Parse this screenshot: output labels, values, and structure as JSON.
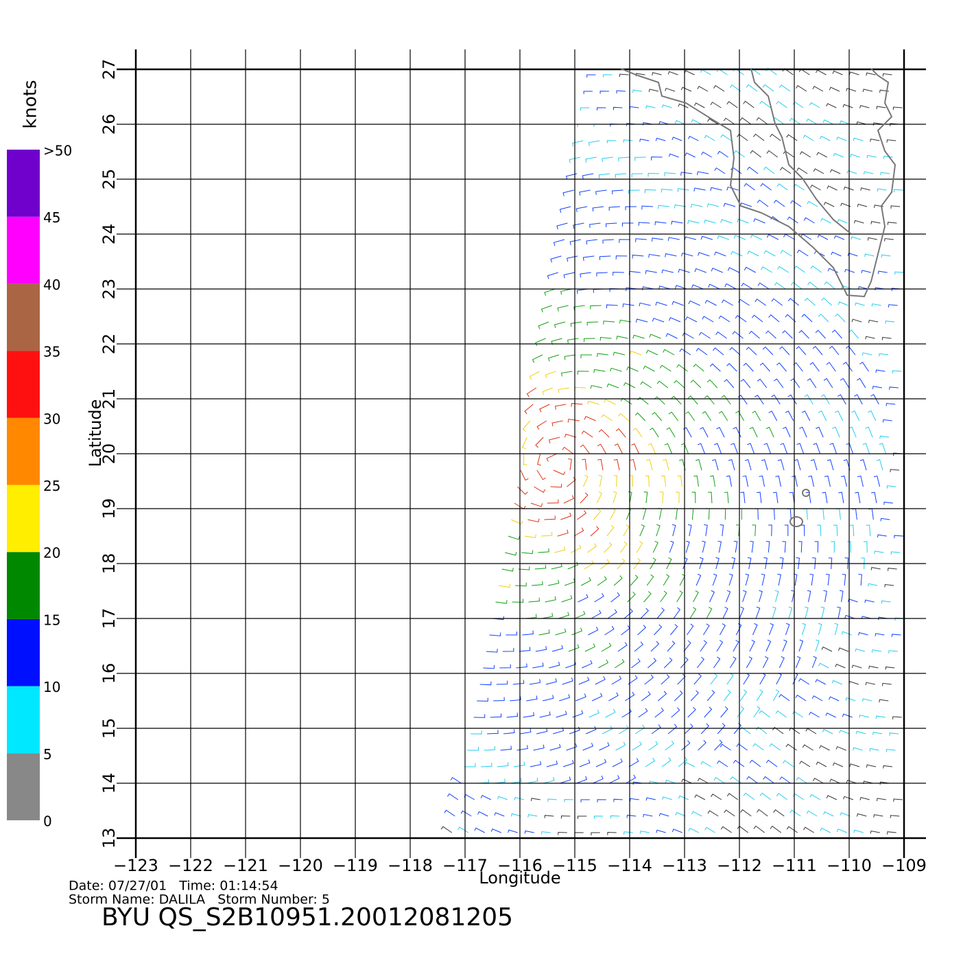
{
  "chart_data": {
    "type": "wind-map",
    "title": "BYU QS_S2B10951.20012081205",
    "info": [
      "Date: 07/27/01   Time: 01:14:54",
      "Storm Name: DALILA   Storm Number: 5"
    ],
    "xlabel": "Longitude",
    "ylabel": "Latitude",
    "xlim": [
      -123,
      -109
    ],
    "ylim": [
      13,
      27
    ],
    "xticks": [
      {
        "value": -123,
        "label": "−123"
      },
      {
        "value": -122,
        "label": "−122"
      },
      {
        "value": -121,
        "label": "−121"
      },
      {
        "value": -120,
        "label": "−120"
      },
      {
        "value": -119,
        "label": "−119"
      },
      {
        "value": -118,
        "label": "−118"
      },
      {
        "value": -117,
        "label": "−117"
      },
      {
        "value": -116,
        "label": "−116"
      },
      {
        "value": -115,
        "label": "−115"
      },
      {
        "value": -114,
        "label": "−114"
      },
      {
        "value": -113,
        "label": "−113"
      },
      {
        "value": -112,
        "label": "−112"
      },
      {
        "value": -111,
        "label": "−111"
      },
      {
        "value": -110,
        "label": "−110"
      },
      {
        "value": -109,
        "label": "−109"
      }
    ],
    "yticks": [
      13,
      14,
      15,
      16,
      17,
      18,
      19,
      20,
      21,
      22,
      23,
      24,
      25,
      26,
      27
    ],
    "grid": true,
    "colorbar": {
      "label": "knots",
      "lim": [
        0,
        50
      ],
      "ticks": [
        0,
        5,
        10,
        15,
        20,
        25,
        30,
        35,
        40,
        45,
        {
          "value": 50,
          "label": ">50"
        }
      ],
      "colors": [
        "#888888",
        "#00e8ff",
        "#0010ff",
        "#008800",
        "#ffee00",
        "#ff8800",
        "#ff1010",
        "#aa6644",
        "#ff00ff",
        "#7000cc"
      ]
    }
  }
}
